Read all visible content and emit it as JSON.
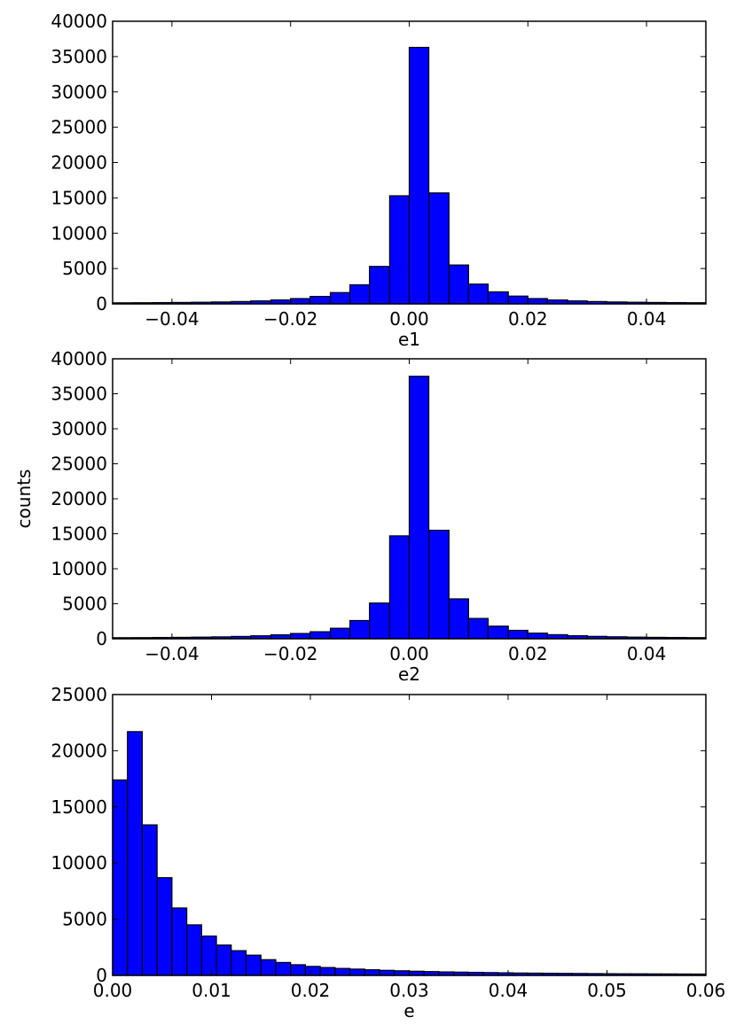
{
  "chart_data": [
    {
      "type": "bar",
      "xlabel": "e1",
      "ylabel": "",
      "xlim": [
        -0.05,
        0.05
      ],
      "ylim": [
        0,
        40000
      ],
      "xticks": [
        -0.04,
        -0.02,
        0.0,
        0.02,
        0.04
      ],
      "xtick_labels": [
        "−0.04",
        "−0.02",
        "0.00",
        "0.02",
        "0.04"
      ],
      "yticks": [
        0,
        5000,
        10000,
        15000,
        20000,
        25000,
        30000,
        35000,
        40000
      ],
      "ytick_labels": [
        "0",
        "5000",
        "10000",
        "15000",
        "20000",
        "25000",
        "30000",
        "35000",
        "40000"
      ],
      "bin_edges": [
        -0.05,
        -0.0467,
        -0.0433,
        -0.04,
        -0.0367,
        -0.0333,
        -0.03,
        -0.0267,
        -0.0233,
        -0.02,
        -0.0167,
        -0.0133,
        -0.01,
        -0.0067,
        -0.0033,
        0.0,
        0.0033,
        0.0067,
        0.01,
        0.0133,
        0.0167,
        0.02,
        0.0233,
        0.0267,
        0.03,
        0.0333,
        0.0367,
        0.04,
        0.0433,
        0.0467,
        0.05
      ],
      "values": [
        150,
        160,
        180,
        200,
        230,
        270,
        330,
        420,
        560,
        750,
        1050,
        1600,
        2700,
        5300,
        15300,
        36300,
        15700,
        5500,
        2800,
        1700,
        1100,
        750,
        550,
        420,
        330,
        270,
        230,
        200,
        180,
        160
      ]
    },
    {
      "type": "bar",
      "xlabel": "e2",
      "ylabel": "counts",
      "xlim": [
        -0.05,
        0.05
      ],
      "ylim": [
        0,
        40000
      ],
      "xticks": [
        -0.04,
        -0.02,
        0.0,
        0.02,
        0.04
      ],
      "xtick_labels": [
        "−0.04",
        "−0.02",
        "0.00",
        "0.02",
        "0.04"
      ],
      "yticks": [
        0,
        5000,
        10000,
        15000,
        20000,
        25000,
        30000,
        35000,
        40000
      ],
      "ytick_labels": [
        "0",
        "5000",
        "10000",
        "15000",
        "20000",
        "25000",
        "30000",
        "35000",
        "40000"
      ],
      "bin_edges": [
        -0.05,
        -0.0467,
        -0.0433,
        -0.04,
        -0.0367,
        -0.0333,
        -0.03,
        -0.0267,
        -0.0233,
        -0.02,
        -0.0167,
        -0.0133,
        -0.01,
        -0.0067,
        -0.0033,
        0.0,
        0.0033,
        0.0067,
        0.01,
        0.0133,
        0.0167,
        0.02,
        0.0233,
        0.0267,
        0.03,
        0.0333,
        0.0367,
        0.04,
        0.0433,
        0.0467,
        0.05
      ],
      "values": [
        150,
        160,
        180,
        200,
        230,
        270,
        330,
        420,
        560,
        750,
        1000,
        1500,
        2600,
        5100,
        14700,
        37500,
        15500,
        5700,
        2900,
        1800,
        1200,
        800,
        580,
        430,
        340,
        280,
        230,
        200,
        180,
        160
      ]
    },
    {
      "type": "bar",
      "xlabel": "e",
      "ylabel": "",
      "xlim": [
        0.0,
        0.06
      ],
      "ylim": [
        0,
        25000
      ],
      "xticks": [
        0.0,
        0.01,
        0.02,
        0.03,
        0.04,
        0.05,
        0.06
      ],
      "xtick_labels": [
        "0.00",
        "0.01",
        "0.02",
        "0.03",
        "0.04",
        "0.05",
        "0.06"
      ],
      "yticks": [
        0,
        5000,
        10000,
        15000,
        20000,
        25000
      ],
      "ytick_labels": [
        "0",
        "5000",
        "10000",
        "15000",
        "20000",
        "25000"
      ],
      "bin_edges": [
        0.0,
        0.0015,
        0.003,
        0.0045,
        0.006,
        0.0075,
        0.009,
        0.0105,
        0.012,
        0.0135,
        0.015,
        0.0165,
        0.018,
        0.0195,
        0.021,
        0.0225,
        0.024,
        0.0255,
        0.027,
        0.0285,
        0.03,
        0.0315,
        0.033,
        0.0345,
        0.036,
        0.0375,
        0.039,
        0.0405,
        0.042,
        0.0435,
        0.045,
        0.0465,
        0.048,
        0.0495,
        0.051,
        0.0525,
        0.054,
        0.0555,
        0.057,
        0.0585,
        0.06
      ],
      "values": [
        17400,
        21700,
        13400,
        8700,
        6000,
        4500,
        3500,
        2700,
        2200,
        1800,
        1400,
        1150,
        950,
        800,
        700,
        620,
        560,
        500,
        450,
        410,
        370,
        340,
        310,
        290,
        270,
        250,
        230,
        210,
        200,
        190,
        180,
        170,
        160,
        150,
        145,
        140,
        135,
        130,
        125,
        120
      ]
    }
  ]
}
